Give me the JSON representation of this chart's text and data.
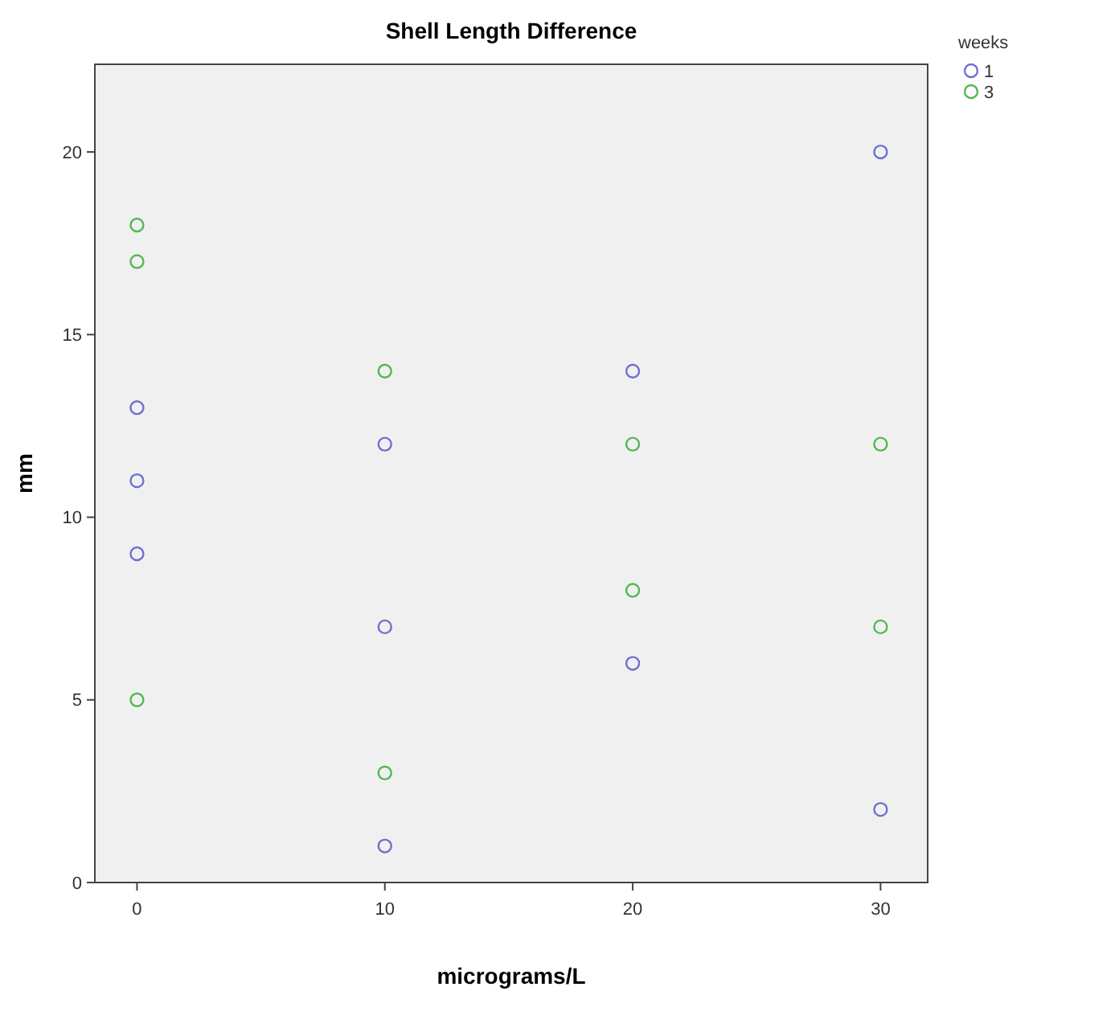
{
  "chart_data": {
    "type": "scatter",
    "title": "Shell Length Difference",
    "xlabel": "micrograms/L",
    "ylabel": "mm",
    "legend_title": "weeks",
    "legend": "top right",
    "marker": "circle",
    "grid": false,
    "xlim": [
      -1.7,
      31.9
    ],
    "xticks": [
      0,
      10,
      20,
      30
    ],
    "ylim": [
      0,
      22.4
    ],
    "yticks": [
      0,
      5,
      10,
      15,
      20
    ],
    "series": [
      {
        "name": "1",
        "color": "#6f6fcf",
        "x": [
          0,
          0,
          0,
          10,
          10,
          10,
          20,
          20,
          30,
          30
        ],
        "values": [
          13,
          11,
          9,
          12,
          7,
          1,
          14,
          6,
          20,
          2
        ]
      },
      {
        "name": "3",
        "color": "#52b852",
        "x": [
          0,
          0,
          0,
          10,
          10,
          20,
          20,
          30,
          30
        ],
        "values": [
          18,
          17,
          5,
          14,
          3,
          12,
          8,
          12,
          7
        ]
      }
    ]
  }
}
